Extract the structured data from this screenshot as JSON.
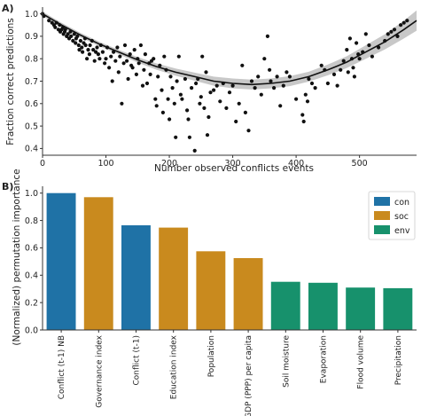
{
  "chart_data": [
    {
      "panel_label": "A)",
      "type": "scatter",
      "xlabel": "Number observed conflicts events",
      "ylabel": "Fraction correct predictions",
      "xlim": [
        0,
        590
      ],
      "ylim": [
        0.37,
        1.03
      ],
      "x_ticks": [
        0,
        100,
        200,
        300,
        400,
        500
      ],
      "y_ticks": [
        0.4,
        0.5,
        0.6,
        0.7,
        0.8,
        0.9,
        1.0
      ],
      "y_tick_labels": [
        "0.4",
        "0.5",
        "0.6",
        "0.7",
        "0.8",
        "0.9",
        "1.0"
      ],
      "grid": false,
      "colors": {
        "points": "#111111",
        "fit": "#111111",
        "band": "#c8c8c8"
      },
      "points": [
        [
          0,
          1.0
        ],
        [
          2,
          0.99
        ],
        [
          10,
          0.97
        ],
        [
          15,
          0.96
        ],
        [
          18,
          0.95
        ],
        [
          20,
          0.94
        ],
        [
          22,
          0.96
        ],
        [
          25,
          0.93
        ],
        [
          27,
          0.95
        ],
        [
          28,
          0.92
        ],
        [
          30,
          0.93
        ],
        [
          32,
          0.94
        ],
        [
          33,
          0.91
        ],
        [
          35,
          0.92
        ],
        [
          36,
          0.93
        ],
        [
          38,
          0.9
        ],
        [
          40,
          0.91
        ],
        [
          42,
          0.89
        ],
        [
          44,
          0.92
        ],
        [
          45,
          0.9
        ],
        [
          48,
          0.88
        ],
        [
          50,
          0.91
        ],
        [
          52,
          0.87
        ],
        [
          53,
          0.89
        ],
        [
          55,
          0.9
        ],
        [
          57,
          0.86
        ],
        [
          58,
          0.84
        ],
        [
          60,
          0.88
        ],
        [
          62,
          0.85
        ],
        [
          63,
          0.83
        ],
        [
          65,
          0.87
        ],
        [
          67,
          0.89
        ],
        [
          68,
          0.86
        ],
        [
          70,
          0.8
        ],
        [
          72,
          0.84
        ],
        [
          74,
          0.82
        ],
        [
          75,
          0.86
        ],
        [
          78,
          0.88
        ],
        [
          80,
          0.84
        ],
        [
          82,
          0.79
        ],
        [
          84,
          0.83
        ],
        [
          86,
          0.85
        ],
        [
          88,
          0.82
        ],
        [
          90,
          0.8
        ],
        [
          92,
          0.86
        ],
        [
          95,
          0.83
        ],
        [
          98,
          0.78
        ],
        [
          100,
          0.8
        ],
        [
          102,
          0.85
        ],
        [
          105,
          0.76
        ],
        [
          108,
          0.81
        ],
        [
          110,
          0.7
        ],
        [
          112,
          0.83
        ],
        [
          115,
          0.79
        ],
        [
          118,
          0.85
        ],
        [
          120,
          0.74
        ],
        [
          122,
          0.81
        ],
        [
          125,
          0.6
        ],
        [
          128,
          0.78
        ],
        [
          130,
          0.86
        ],
        [
          133,
          0.79
        ],
        [
          135,
          0.71
        ],
        [
          138,
          0.82
        ],
        [
          140,
          0.77
        ],
        [
          142,
          0.76
        ],
        [
          145,
          0.84
        ],
        [
          148,
          0.73
        ],
        [
          150,
          0.8
        ],
        [
          152,
          0.78
        ],
        [
          155,
          0.86
        ],
        [
          158,
          0.68
        ],
        [
          160,
          0.75
        ],
        [
          162,
          0.82
        ],
        [
          165,
          0.69
        ],
        [
          168,
          0.78
        ],
        [
          170,
          0.73
        ],
        [
          172,
          0.79
        ],
        [
          175,
          0.8
        ],
        [
          178,
          0.62
        ],
        [
          180,
          0.59
        ],
        [
          182,
          0.72
        ],
        [
          185,
          0.77
        ],
        [
          188,
          0.66
        ],
        [
          190,
          0.56
        ],
        [
          192,
          0.81
        ],
        [
          195,
          0.75
        ],
        [
          198,
          0.62
        ],
        [
          200,
          0.53
        ],
        [
          202,
          0.72
        ],
        [
          205,
          0.67
        ],
        [
          208,
          0.6
        ],
        [
          210,
          0.45
        ],
        [
          212,
          0.7
        ],
        [
          215,
          0.81
        ],
        [
          218,
          0.64
        ],
        [
          220,
          0.62
        ],
        [
          225,
          0.71
        ],
        [
          228,
          0.57
        ],
        [
          230,
          0.53
        ],
        [
          232,
          0.45
        ],
        [
          235,
          0.67
        ],
        [
          240,
          0.39
        ],
        [
          242,
          0.69
        ],
        [
          245,
          0.71
        ],
        [
          248,
          0.6
        ],
        [
          250,
          0.63
        ],
        [
          252,
          0.81
        ],
        [
          255,
          0.58
        ],
        [
          258,
          0.74
        ],
        [
          260,
          0.46
        ],
        [
          262,
          0.54
        ],
        [
          265,
          0.65
        ],
        [
          270,
          0.66
        ],
        [
          275,
          0.68
        ],
        [
          280,
          0.61
        ],
        [
          285,
          0.69
        ],
        [
          290,
          0.58
        ],
        [
          295,
          0.65
        ],
        [
          300,
          0.68
        ],
        [
          305,
          0.52
        ],
        [
          310,
          0.6
        ],
        [
          315,
          0.77
        ],
        [
          320,
          0.56
        ],
        [
          325,
          0.48
        ],
        [
          330,
          0.7
        ],
        [
          335,
          0.67
        ],
        [
          340,
          0.72
        ],
        [
          345,
          0.64
        ],
        [
          350,
          0.8
        ],
        [
          355,
          0.9
        ],
        [
          358,
          0.75
        ],
        [
          360,
          0.7
        ],
        [
          365,
          0.67
        ],
        [
          370,
          0.72
        ],
        [
          375,
          0.59
        ],
        [
          380,
          0.68
        ],
        [
          385,
          0.74
        ],
        [
          390,
          0.72
        ],
        [
          400,
          0.62
        ],
        [
          410,
          0.55
        ],
        [
          412,
          0.52
        ],
        [
          415,
          0.64
        ],
        [
          418,
          0.61
        ],
        [
          420,
          0.71
        ],
        [
          425,
          0.69
        ],
        [
          430,
          0.67
        ],
        [
          440,
          0.77
        ],
        [
          445,
          0.75
        ],
        [
          450,
          0.69
        ],
        [
          460,
          0.73
        ],
        [
          465,
          0.68
        ],
        [
          470,
          0.75
        ],
        [
          475,
          0.79
        ],
        [
          480,
          0.84
        ],
        [
          482,
          0.74
        ],
        [
          485,
          0.89
        ],
        [
          488,
          0.8
        ],
        [
          490,
          0.76
        ],
        [
          492,
          0.72
        ],
        [
          495,
          0.87
        ],
        [
          498,
          0.82
        ],
        [
          500,
          0.8
        ],
        [
          505,
          0.83
        ],
        [
          510,
          0.91
        ],
        [
          515,
          0.86
        ],
        [
          520,
          0.81
        ],
        [
          530,
          0.85
        ],
        [
          540,
          0.88
        ],
        [
          545,
          0.91
        ],
        [
          550,
          0.92
        ],
        [
          555,
          0.93
        ],
        [
          560,
          0.9
        ],
        [
          565,
          0.95
        ],
        [
          570,
          0.96
        ],
        [
          575,
          0.97
        ]
      ],
      "fit_curve": {
        "x": [
          0,
          30,
          60,
          90,
          120,
          150,
          180,
          210,
          240,
          270,
          300,
          330,
          360,
          390,
          420,
          450,
          480,
          510,
          540,
          570,
          590
        ],
        "y": [
          1.0,
          0.95,
          0.905,
          0.865,
          0.83,
          0.795,
          0.765,
          0.74,
          0.72,
          0.7,
          0.69,
          0.685,
          0.69,
          0.7,
          0.72,
          0.75,
          0.785,
          0.83,
          0.875,
          0.93,
          0.97
        ],
        "band_half_width": [
          0.01,
          0.01,
          0.01,
          0.01,
          0.01,
          0.012,
          0.014,
          0.016,
          0.018,
          0.02,
          0.022,
          0.022,
          0.022,
          0.022,
          0.022,
          0.024,
          0.026,
          0.03,
          0.034,
          0.04,
          0.045
        ]
      }
    },
    {
      "panel_label": "B)",
      "type": "bar",
      "ylabel": "(Normalized) permutation importance",
      "ylim": [
        0,
        1.05
      ],
      "y_ticks": [
        0,
        0.2,
        0.4,
        0.6,
        0.8,
        1.0
      ],
      "y_tick_labels": [
        "0.0",
        "0.2",
        "0.4",
        "0.6",
        "0.8",
        "1.0"
      ],
      "legend_position": "top-right",
      "legend": [
        {
          "key": "con",
          "label": "con",
          "color": "#1f72a6"
        },
        {
          "key": "soc",
          "label": "soc",
          "color": "#c98a1e"
        },
        {
          "key": "env",
          "label": "env",
          "color": "#17916c"
        }
      ],
      "categories": [
        "Conflict (t-1) NB",
        "Governance index",
        "Conflict (t-1)",
        "Education index",
        "Population",
        "GDP (PPP) per capita",
        "Soil moisture",
        "Evaporation",
        "Flood volume",
        "Precipitation"
      ],
      "values": [
        1.0,
        0.97,
        0.765,
        0.748,
        0.575,
        0.525,
        0.352,
        0.345,
        0.31,
        0.305
      ],
      "groups": [
        "con",
        "soc",
        "con",
        "soc",
        "soc",
        "soc",
        "env",
        "env",
        "env",
        "env"
      ]
    }
  ]
}
